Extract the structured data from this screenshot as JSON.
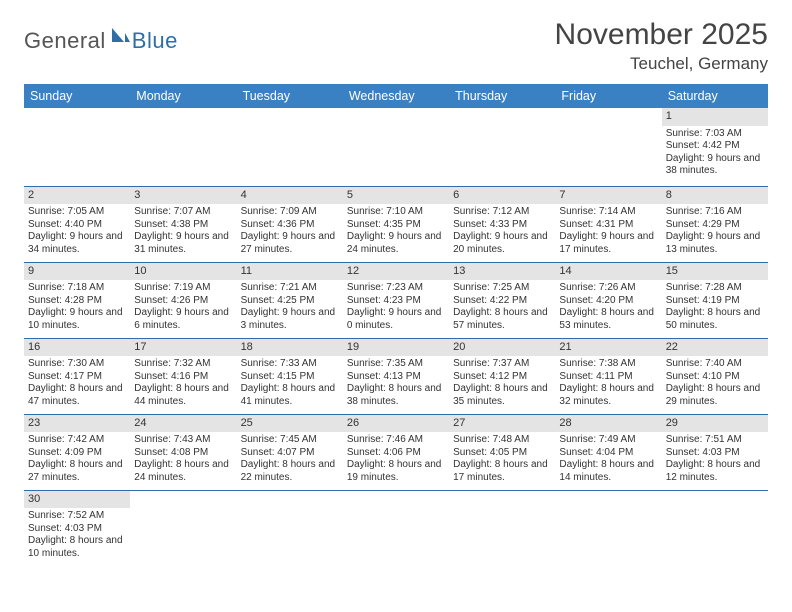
{
  "logo": {
    "part1": "General",
    "part2": "Blue"
  },
  "title": "November 2025",
  "location": "Teuchel, Germany",
  "colors": {
    "header_bg": "#3a81c4",
    "header_text": "#ffffff",
    "day_bg": "#e4e4e4",
    "rule": "#2f6fa8",
    "logo_accent": "#2f6fa8"
  },
  "weekdays": [
    "Sunday",
    "Monday",
    "Tuesday",
    "Wednesday",
    "Thursday",
    "Friday",
    "Saturday"
  ],
  "weeks": [
    [
      null,
      null,
      null,
      null,
      null,
      null,
      {
        "n": "1",
        "sr": "Sunrise: 7:03 AM",
        "ss": "Sunset: 4:42 PM",
        "dl": "Daylight: 9 hours and 38 minutes."
      }
    ],
    [
      {
        "n": "2",
        "sr": "Sunrise: 7:05 AM",
        "ss": "Sunset: 4:40 PM",
        "dl": "Daylight: 9 hours and 34 minutes."
      },
      {
        "n": "3",
        "sr": "Sunrise: 7:07 AM",
        "ss": "Sunset: 4:38 PM",
        "dl": "Daylight: 9 hours and 31 minutes."
      },
      {
        "n": "4",
        "sr": "Sunrise: 7:09 AM",
        "ss": "Sunset: 4:36 PM",
        "dl": "Daylight: 9 hours and 27 minutes."
      },
      {
        "n": "5",
        "sr": "Sunrise: 7:10 AM",
        "ss": "Sunset: 4:35 PM",
        "dl": "Daylight: 9 hours and 24 minutes."
      },
      {
        "n": "6",
        "sr": "Sunrise: 7:12 AM",
        "ss": "Sunset: 4:33 PM",
        "dl": "Daylight: 9 hours and 20 minutes."
      },
      {
        "n": "7",
        "sr": "Sunrise: 7:14 AM",
        "ss": "Sunset: 4:31 PM",
        "dl": "Daylight: 9 hours and 17 minutes."
      },
      {
        "n": "8",
        "sr": "Sunrise: 7:16 AM",
        "ss": "Sunset: 4:29 PM",
        "dl": "Daylight: 9 hours and 13 minutes."
      }
    ],
    [
      {
        "n": "9",
        "sr": "Sunrise: 7:18 AM",
        "ss": "Sunset: 4:28 PM",
        "dl": "Daylight: 9 hours and 10 minutes."
      },
      {
        "n": "10",
        "sr": "Sunrise: 7:19 AM",
        "ss": "Sunset: 4:26 PM",
        "dl": "Daylight: 9 hours and 6 minutes."
      },
      {
        "n": "11",
        "sr": "Sunrise: 7:21 AM",
        "ss": "Sunset: 4:25 PM",
        "dl": "Daylight: 9 hours and 3 minutes."
      },
      {
        "n": "12",
        "sr": "Sunrise: 7:23 AM",
        "ss": "Sunset: 4:23 PM",
        "dl": "Daylight: 9 hours and 0 minutes."
      },
      {
        "n": "13",
        "sr": "Sunrise: 7:25 AM",
        "ss": "Sunset: 4:22 PM",
        "dl": "Daylight: 8 hours and 57 minutes."
      },
      {
        "n": "14",
        "sr": "Sunrise: 7:26 AM",
        "ss": "Sunset: 4:20 PM",
        "dl": "Daylight: 8 hours and 53 minutes."
      },
      {
        "n": "15",
        "sr": "Sunrise: 7:28 AM",
        "ss": "Sunset: 4:19 PM",
        "dl": "Daylight: 8 hours and 50 minutes."
      }
    ],
    [
      {
        "n": "16",
        "sr": "Sunrise: 7:30 AM",
        "ss": "Sunset: 4:17 PM",
        "dl": "Daylight: 8 hours and 47 minutes."
      },
      {
        "n": "17",
        "sr": "Sunrise: 7:32 AM",
        "ss": "Sunset: 4:16 PM",
        "dl": "Daylight: 8 hours and 44 minutes."
      },
      {
        "n": "18",
        "sr": "Sunrise: 7:33 AM",
        "ss": "Sunset: 4:15 PM",
        "dl": "Daylight: 8 hours and 41 minutes."
      },
      {
        "n": "19",
        "sr": "Sunrise: 7:35 AM",
        "ss": "Sunset: 4:13 PM",
        "dl": "Daylight: 8 hours and 38 minutes."
      },
      {
        "n": "20",
        "sr": "Sunrise: 7:37 AM",
        "ss": "Sunset: 4:12 PM",
        "dl": "Daylight: 8 hours and 35 minutes."
      },
      {
        "n": "21",
        "sr": "Sunrise: 7:38 AM",
        "ss": "Sunset: 4:11 PM",
        "dl": "Daylight: 8 hours and 32 minutes."
      },
      {
        "n": "22",
        "sr": "Sunrise: 7:40 AM",
        "ss": "Sunset: 4:10 PM",
        "dl": "Daylight: 8 hours and 29 minutes."
      }
    ],
    [
      {
        "n": "23",
        "sr": "Sunrise: 7:42 AM",
        "ss": "Sunset: 4:09 PM",
        "dl": "Daylight: 8 hours and 27 minutes."
      },
      {
        "n": "24",
        "sr": "Sunrise: 7:43 AM",
        "ss": "Sunset: 4:08 PM",
        "dl": "Daylight: 8 hours and 24 minutes."
      },
      {
        "n": "25",
        "sr": "Sunrise: 7:45 AM",
        "ss": "Sunset: 4:07 PM",
        "dl": "Daylight: 8 hours and 22 minutes."
      },
      {
        "n": "26",
        "sr": "Sunrise: 7:46 AM",
        "ss": "Sunset: 4:06 PM",
        "dl": "Daylight: 8 hours and 19 minutes."
      },
      {
        "n": "27",
        "sr": "Sunrise: 7:48 AM",
        "ss": "Sunset: 4:05 PM",
        "dl": "Daylight: 8 hours and 17 minutes."
      },
      {
        "n": "28",
        "sr": "Sunrise: 7:49 AM",
        "ss": "Sunset: 4:04 PM",
        "dl": "Daylight: 8 hours and 14 minutes."
      },
      {
        "n": "29",
        "sr": "Sunrise: 7:51 AM",
        "ss": "Sunset: 4:03 PM",
        "dl": "Daylight: 8 hours and 12 minutes."
      }
    ],
    [
      {
        "n": "30",
        "sr": "Sunrise: 7:52 AM",
        "ss": "Sunset: 4:03 PM",
        "dl": "Daylight: 8 hours and 10 minutes."
      },
      null,
      null,
      null,
      null,
      null,
      null
    ]
  ]
}
